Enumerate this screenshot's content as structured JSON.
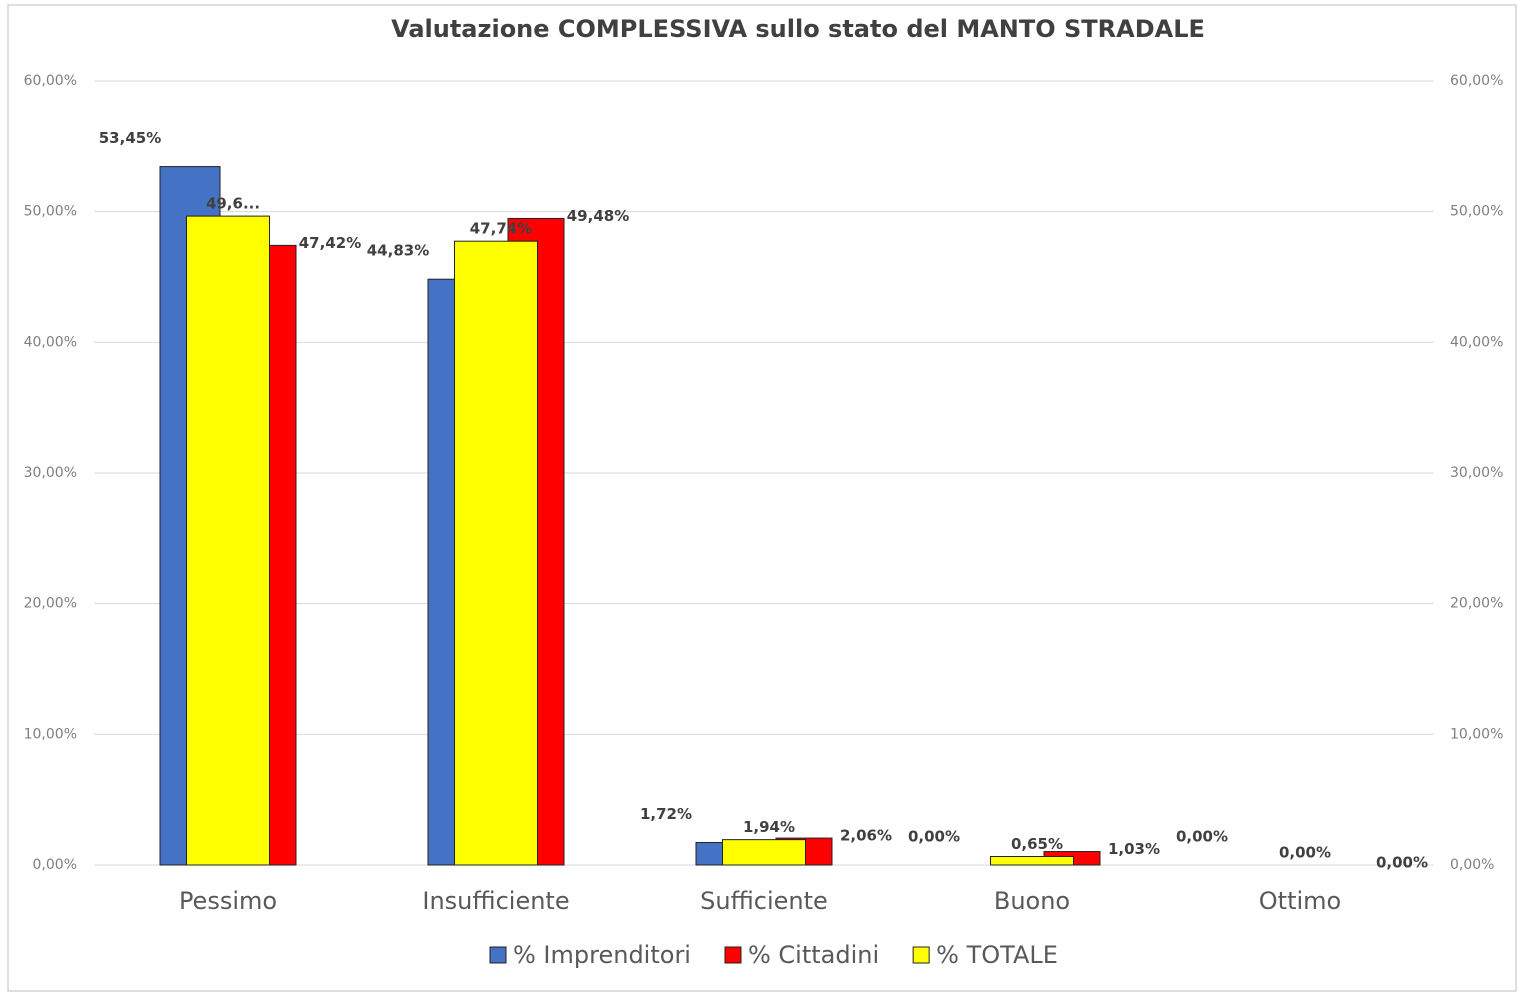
{
  "chart_data": {
    "type": "bar",
    "title": "Valutazione COMPLESSIVA sullo stato del MANTO STRADALE",
    "categories": [
      "Pessimo",
      "Insufficiente",
      "Sufficiente",
      "Buono",
      "Ottimo"
    ],
    "series": [
      {
        "name": "% Imprenditori",
        "color": "#4472c4",
        "values": [
          53.45,
          44.83,
          1.72,
          0.0,
          0.0
        ],
        "value_labels": [
          "53,45%",
          "44,83%",
          "1,72%",
          "0,00%",
          "0,00%"
        ]
      },
      {
        "name": "% Cittadini",
        "color": "#ff0000",
        "values": [
          47.42,
          49.48,
          2.06,
          1.03,
          0.0
        ],
        "value_labels": [
          "47,42%",
          "49,48%",
          "2,06%",
          "1,03%",
          "0,00%"
        ]
      },
      {
        "name": "% TOTALE",
        "color": "#ffff00",
        "values": [
          49.66,
          47.74,
          1.94,
          0.65,
          0.0
        ],
        "value_labels": [
          "49,6...",
          "47,74%",
          "1,94%",
          "0,65%",
          "0,00%"
        ]
      }
    ],
    "ylim": [
      0,
      60
    ],
    "yticks": [
      {
        "value": 0,
        "label": "0,00%"
      },
      {
        "value": 10,
        "label": "10,00%"
      },
      {
        "value": 20,
        "label": "20,00%"
      },
      {
        "value": 30,
        "label": "30,00%"
      },
      {
        "value": 40,
        "label": "40,00%"
      },
      {
        "value": 50,
        "label": "50,00%"
      },
      {
        "value": 60,
        "label": "60,00%"
      }
    ],
    "y2lim": [
      0,
      60
    ],
    "y2ticks": [
      {
        "value": 0,
        "label": "0,00%"
      },
      {
        "value": 10,
        "label": "10,00%"
      },
      {
        "value": 20,
        "label": "20,00%"
      },
      {
        "value": 30,
        "label": "30,00%"
      },
      {
        "value": 40,
        "label": "40,00%"
      },
      {
        "value": 50,
        "label": "50,00%"
      },
      {
        "value": 60,
        "label": "60,00%"
      }
    ],
    "grid": true,
    "legend": "bottom"
  }
}
